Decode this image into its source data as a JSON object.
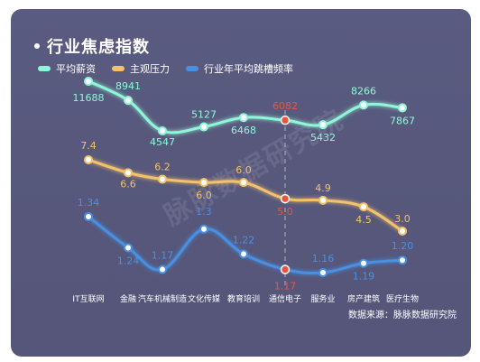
{
  "title": "行业焦虑指数",
  "source": "数据来源：脉脉数据研究院",
  "watermark": "脉脉数据研究院",
  "colors": {
    "salary": "#8ff7d8",
    "pressure": "#f4c26b",
    "hopping": "#4a90e2",
    "highlight": "#e8553e",
    "background": "#585a7e"
  },
  "chart_data": {
    "type": "line",
    "title": "行业焦虑指数",
    "categories": [
      "IT互联网",
      "金融",
      "汽车机械制造",
      "文化传媒",
      "教育培训",
      "通信电子",
      "服务业",
      "房产建筑",
      "医疗生物"
    ],
    "highlight_category": "通信电子",
    "series": [
      {
        "name": "平均薪资",
        "values": [
          11688,
          8941,
          4547,
          5127,
          6468,
          6082,
          5432,
          8266,
          7867
        ]
      },
      {
        "name": "主观压力",
        "values": [
          7.4,
          6.6,
          6.2,
          6.0,
          6.0,
          5.0,
          4.9,
          4.5,
          3.0
        ]
      },
      {
        "name": "行业年平均跳槽频率",
        "values": [
          1.34,
          1.24,
          1.17,
          1.3,
          1.22,
          1.17,
          1.16,
          1.19,
          1.2
        ]
      }
    ],
    "value_labels": [
      [
        "11688",
        "8941",
        "4547",
        "5127",
        "6468",
        "6082",
        "5432",
        "8266",
        "7867"
      ],
      [
        "7.4",
        "6.6",
        "6.2",
        "6.0",
        "6.0",
        "5.0",
        "4.9",
        "4.5",
        "3.0"
      ],
      [
        "1.34",
        "1.24",
        "1.17",
        "1.3",
        "1.22",
        "1.17",
        "1.16",
        "1.19",
        "1.20"
      ]
    ],
    "legend_position": "top-left",
    "grid": false
  }
}
